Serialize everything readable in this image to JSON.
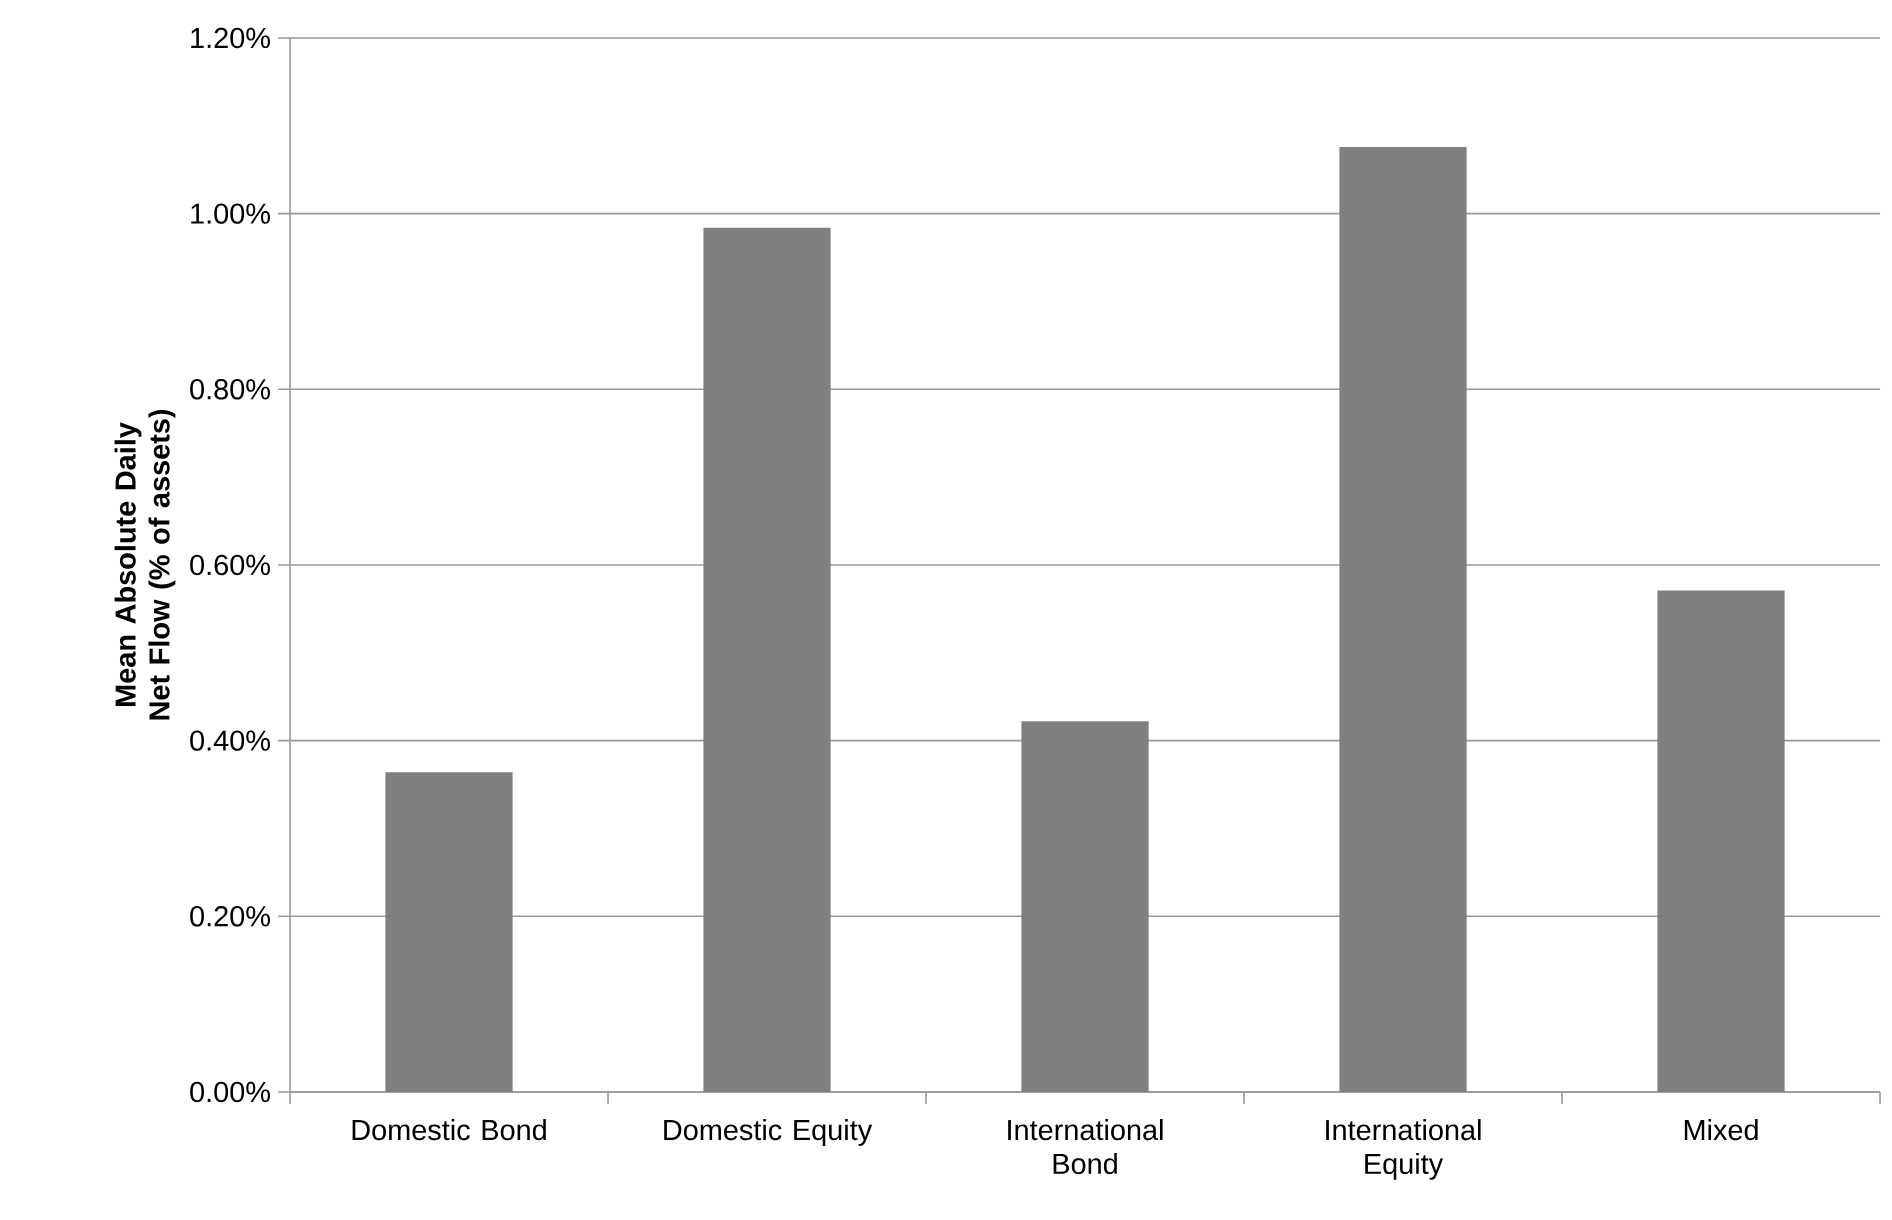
{
  "chart_data": {
    "type": "bar",
    "ylabel": "Mean Absolute Daily Net Flow (% of assets)",
    "categories": [
      "Domestic Bond",
      "Domestic Equity",
      "International Bond",
      "International Equity",
      "Mixed"
    ],
    "values": [
      0.364,
      0.984,
      0.422,
      1.076,
      0.571
    ],
    "color": "#7f7f7f",
    "ylim": [
      0,
      1.2
    ],
    "yticks": [
      {
        "value": 0,
        "label": "0.00%"
      },
      {
        "value": 0.2,
        "label": "0.20%"
      },
      {
        "value": 0.4,
        "label": "0.40%"
      },
      {
        "value": 0.6,
        "label": "0.60%"
      },
      {
        "value": 0.8,
        "label": "0.80%"
      },
      {
        "value": 1.0,
        "label": "1.00%"
      },
      {
        "value": 1.2,
        "label": "1.20%"
      }
    ],
    "grid": "y"
  }
}
